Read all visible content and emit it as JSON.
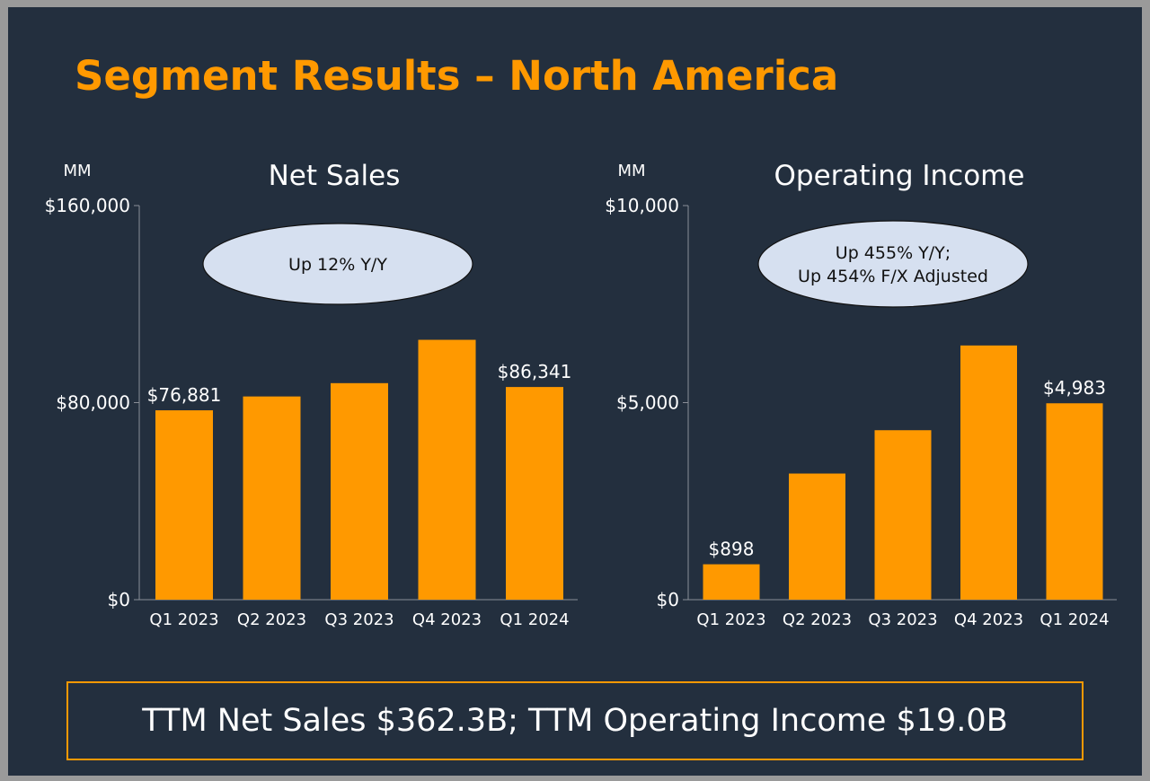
{
  "slide_title": "Segment Results – North America",
  "footer_text": "TTM Net Sales $362.3B; TTM Operating Income $19.0B",
  "colors": {
    "background": "#232f3e",
    "bar": "#ff9900",
    "accent": "#ff9900",
    "callout_fill": "#d6e0f0"
  },
  "chart_data": [
    {
      "type": "bar",
      "title": "Net Sales",
      "unit_label": "MM",
      "categories": [
        "Q1 2023",
        "Q2 2023",
        "Q3 2023",
        "Q4 2023",
        "Q1 2024"
      ],
      "values": [
        76881,
        82500,
        87900,
        105500,
        86341
      ],
      "value_labels": [
        "$76,881",
        "",
        "",
        "",
        "$86,341"
      ],
      "ylim": [
        0,
        160000
      ],
      "yticks": [
        0,
        80000,
        160000
      ],
      "ytick_labels": [
        "$0",
        "$80,000",
        "$160,000"
      ],
      "callout": [
        "Up 12% Y/Y"
      ]
    },
    {
      "type": "bar",
      "title": "Operating Income",
      "unit_label": "MM",
      "categories": [
        "Q1 2023",
        "Q2 2023",
        "Q3 2023",
        "Q4 2023",
        "Q1 2024"
      ],
      "values": [
        898,
        3200,
        4300,
        6450,
        4983
      ],
      "value_labels": [
        "$898",
        "",
        "",
        "",
        "$4,983"
      ],
      "ylim": [
        0,
        10000
      ],
      "yticks": [
        0,
        5000,
        10000
      ],
      "ytick_labels": [
        "$0",
        "$5,000",
        "$10,000"
      ],
      "callout": [
        "Up 455% Y/Y;",
        "Up 454% F/X Adjusted"
      ]
    }
  ]
}
